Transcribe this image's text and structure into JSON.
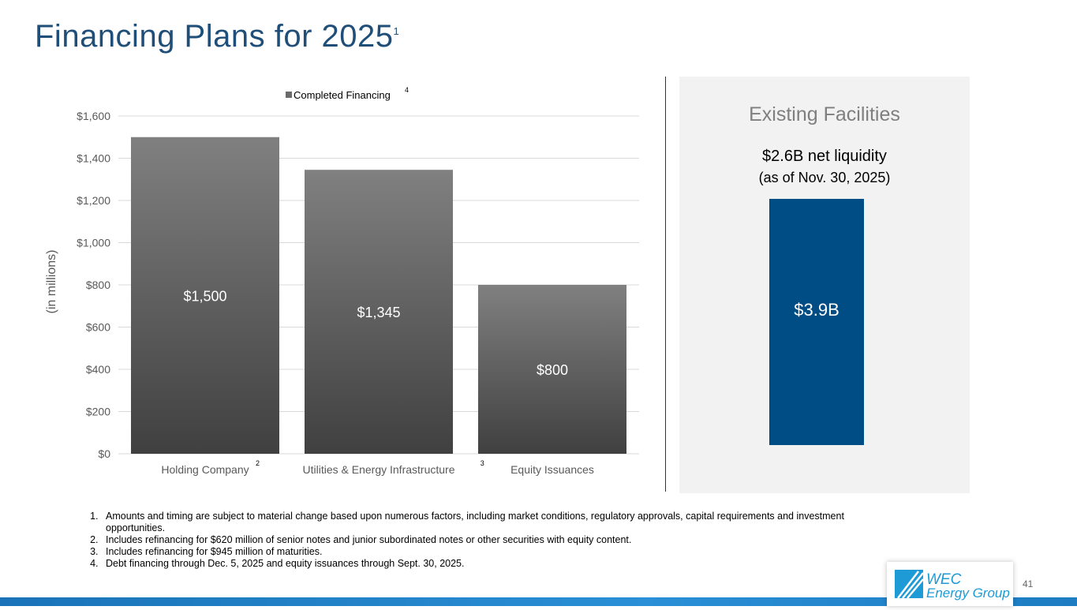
{
  "title": "Financing Plans for 2025",
  "title_footnote": "1",
  "chart_data": {
    "type": "bar",
    "categories": [
      "Holding Company",
      "Utilities & Energy Infrastructure",
      "Equity Issuances"
    ],
    "category_footnotes": [
      "2",
      "3",
      ""
    ],
    "series": [
      {
        "name": "Completed Financing",
        "values": [
          1500,
          1345,
          800
        ],
        "color": "#6b6b6b"
      }
    ],
    "data_labels": [
      "$1,500",
      "$1,345",
      "$800"
    ],
    "legend": {
      "label": "Completed Financing",
      "footnote": "4",
      "placement": "top"
    },
    "ylabel": "(in millions)",
    "ylim": [
      0,
      1600
    ],
    "yticks": [
      0,
      200,
      400,
      600,
      800,
      1000,
      1200,
      1400,
      1600
    ],
    "ytick_labels": [
      "$0",
      "$200",
      "$400",
      "$600",
      "$800",
      "$1,000",
      "$1,200",
      "$1,400",
      "$1,600"
    ],
    "grid": true
  },
  "facilities": {
    "title": "Existing Facilities",
    "subtitle": "$2.6B net liquidity",
    "as_of": "(as of Nov. 30, 2025)",
    "bar_label": "$3.9B",
    "bar_color": "#004c85"
  },
  "footnotes": [
    "Amounts and timing are subject to material change based upon numerous factors, including market conditions, regulatory approvals, capital requirements and investment opportunities.",
    "Includes refinancing for $620 million of senior notes and junior subordinated notes or other securities with equity content.",
    "Includes refinancing for $945 million of maturities.",
    "Debt financing through Dec. 5, 2025 and equity issuances through Sept. 30, 2025."
  ],
  "logo": {
    "line1": "WEC",
    "line2": "Energy Group"
  },
  "page_number": "41"
}
